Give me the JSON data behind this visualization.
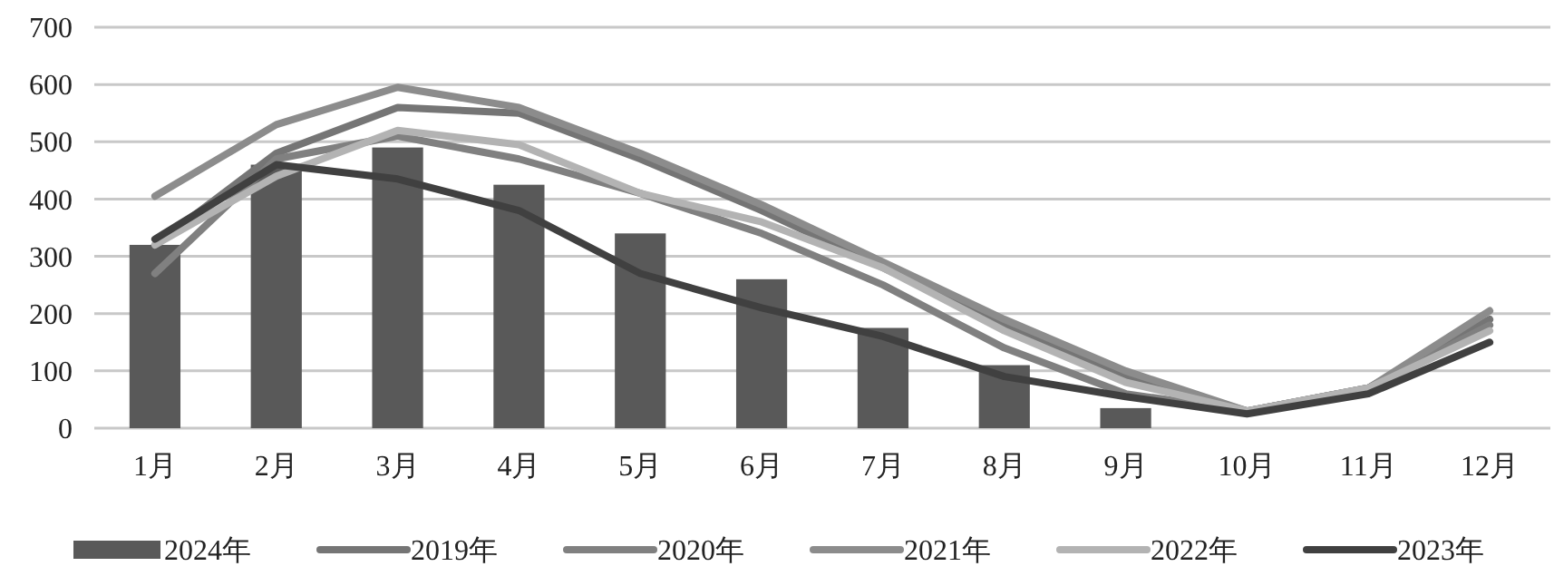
{
  "chart_data": {
    "type": "bar",
    "categories": [
      "1月",
      "2月",
      "3月",
      "4月",
      "5月",
      "6月",
      "7月",
      "8月",
      "9月",
      "10月",
      "11月",
      "12月"
    ],
    "series": [
      {
        "name": "2024年",
        "color": "#595959",
        "values": [
          320,
          460,
          490,
          425,
          340,
          260,
          175,
          110,
          35,
          null,
          null,
          null
        ]
      },
      {
        "name": "2019年",
        "type": "line",
        "color": "#757575",
        "values": [
          320,
          480,
          560,
          550,
          470,
          380,
          280,
          180,
          90,
          30,
          70,
          190
        ]
      },
      {
        "name": "2020年",
        "type": "line",
        "color": "#808080",
        "values": [
          270,
          470,
          510,
          470,
          410,
          340,
          250,
          140,
          60,
          30,
          70,
          180
        ]
      },
      {
        "name": "2021年",
        "type": "line",
        "color": "#8c8c8c",
        "values": [
          405,
          530,
          595,
          560,
          480,
          390,
          290,
          190,
          100,
          30,
          70,
          205
        ]
      },
      {
        "name": "2022年",
        "type": "line",
        "color": "#b3b3b3",
        "values": [
          320,
          440,
          520,
          495,
          410,
          360,
          280,
          170,
          80,
          30,
          70,
          170
        ]
      },
      {
        "name": "2023年",
        "type": "line",
        "color": "#404040",
        "values": [
          330,
          460,
          435,
          380,
          270,
          210,
          160,
          90,
          55,
          25,
          60,
          150
        ]
      }
    ],
    "ylim": [
      0,
      700
    ],
    "yticks": [
      0,
      100,
      200,
      300,
      400,
      500,
      600,
      700
    ],
    "grid": "y",
    "legend": "bottom",
    "marker": "none",
    "line_style": "solid"
  }
}
